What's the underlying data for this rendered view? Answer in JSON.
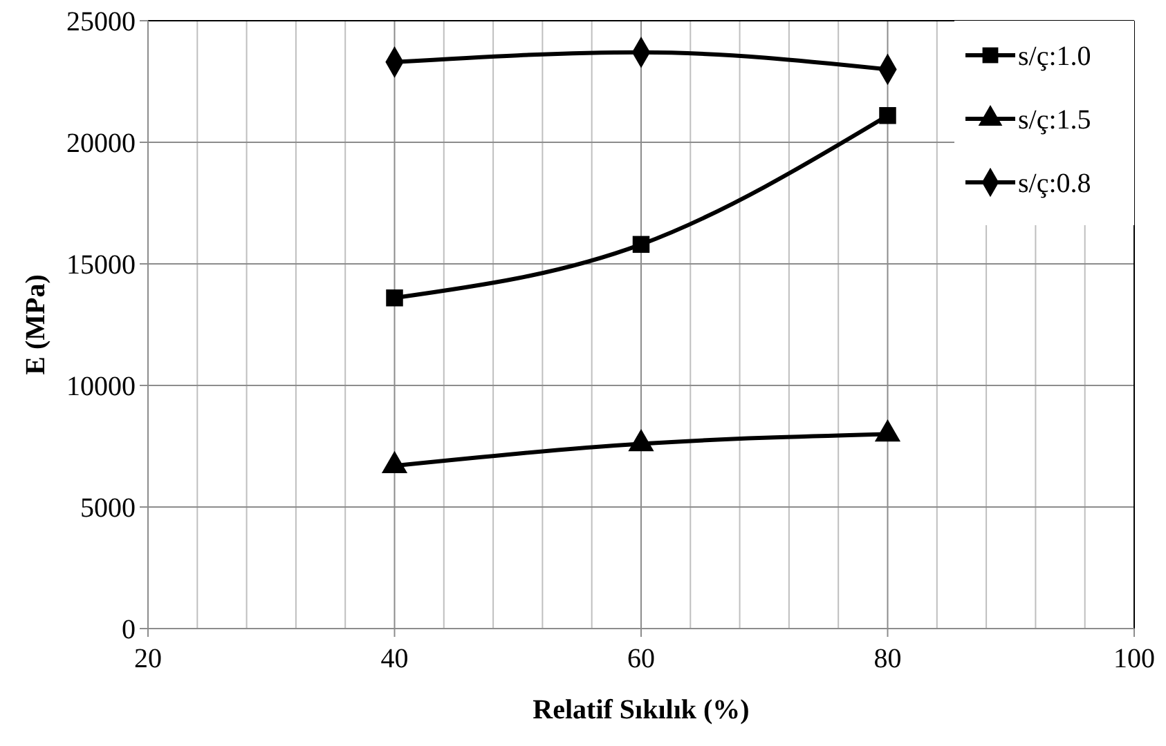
{
  "chart_data": {
    "type": "line",
    "xlabel": "Relatif Sıkılık (%)",
    "ylabel": "E (MPa)",
    "x": [
      40,
      60,
      80
    ],
    "series": [
      {
        "name": "s/ç:1.0",
        "color": "#000000",
        "marker": "square",
        "values": [
          13600,
          15800,
          21100
        ]
      },
      {
        "name": "s/ç:1.5",
        "color": "#000000",
        "marker": "triangle",
        "values": [
          6700,
          7600,
          8000
        ]
      },
      {
        "name": "s/ç:0.8",
        "color": "#000000",
        "marker": "diamond",
        "values": [
          23300,
          23700,
          23000
        ]
      }
    ],
    "xlim": [
      20,
      100
    ],
    "xticks": [
      20,
      {
        "value": 24,
        "label": null
      },
      {
        "value": 28,
        "label": null
      },
      {
        "value": 32,
        "label": null
      },
      {
        "value": 36,
        "label": null
      },
      40,
      {
        "value": 44,
        "label": null
      },
      {
        "value": 48,
        "label": null
      },
      {
        "value": 52,
        "label": null
      },
      {
        "value": 56,
        "label": null
      },
      60,
      {
        "value": 64,
        "label": null
      },
      {
        "value": 68,
        "label": null
      },
      {
        "value": 72,
        "label": null
      },
      {
        "value": 76,
        "label": null
      },
      80,
      {
        "value": 84,
        "label": null
      },
      {
        "value": 88,
        "label": null
      },
      {
        "value": 92,
        "label": null
      },
      {
        "value": 96,
        "label": null
      },
      100
    ],
    "ylim": [
      0,
      25000
    ],
    "yticks": [
      0,
      5000,
      10000,
      15000,
      20000,
      25000
    ],
    "grid": true,
    "legend": "top right",
    "line_style": "solid"
  }
}
